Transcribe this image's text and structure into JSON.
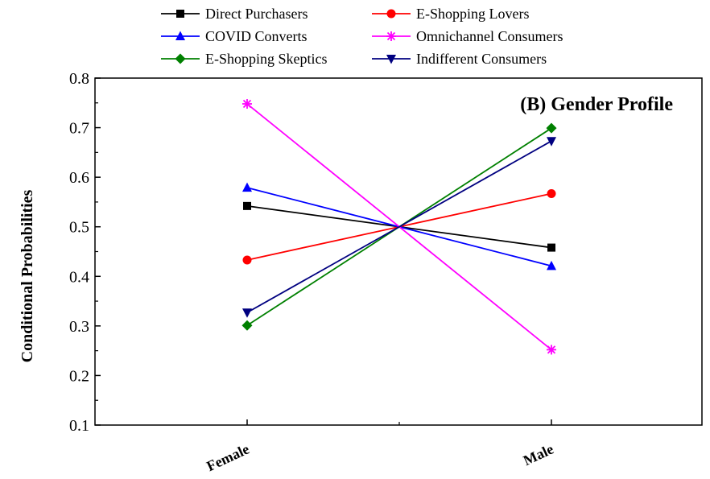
{
  "chart_data": {
    "type": "line",
    "title": "(B) Gender Profile",
    "xlabel": "",
    "ylabel": "Conditional Probabilities",
    "categories": [
      "Female",
      "Male"
    ],
    "ylim": [
      0.1,
      0.8
    ],
    "yticks": [
      "0.1",
      "0.2",
      "0.3",
      "0.4",
      "0.5",
      "0.6",
      "0.7",
      "0.8"
    ],
    "grid": false,
    "legend_placement": "top",
    "series": [
      {
        "name": "Direct Purchasers",
        "color": "#000000",
        "marker": "square",
        "values": [
          0.542,
          0.458
        ]
      },
      {
        "name": "E-Shopping Lovers",
        "color": "#ff0000",
        "marker": "circle",
        "values": [
          0.433,
          0.567
        ]
      },
      {
        "name": "COVID Converts",
        "color": "#0000ff",
        "marker": "triangle-up",
        "values": [
          0.579,
          0.421
        ]
      },
      {
        "name": "Omnichannel Consumers",
        "color": "#ff00ff",
        "marker": "asterisk",
        "values": [
          0.748,
          0.252
        ]
      },
      {
        "name": "E-Shopping Skeptics",
        "color": "#008000",
        "marker": "diamond",
        "values": [
          0.301,
          0.699
        ]
      },
      {
        "name": "Indifferent Consumers",
        "color": "#000080",
        "marker": "triangle-down",
        "values": [
          0.327,
          0.673
        ]
      }
    ]
  }
}
